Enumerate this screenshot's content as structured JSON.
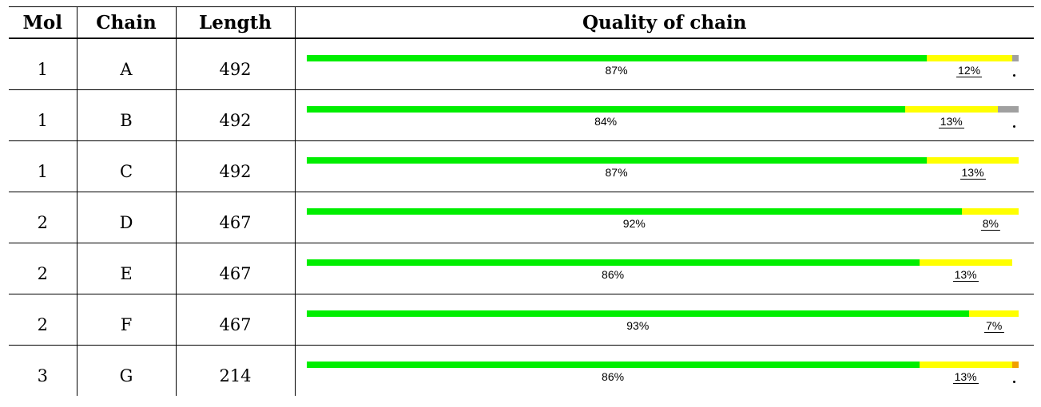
{
  "headers": {
    "mol": "Mol",
    "chain": "Chain",
    "length": "Length",
    "quality": "Quality of chain"
  },
  "colors": {
    "good": "#00ee00",
    "medium": "#ffff00",
    "bad": "#f0a000",
    "missing": "#a0a0a0"
  },
  "rows": [
    {
      "mol": "1",
      "chain": "A",
      "length": "492",
      "green": 0.87,
      "yellow": 0.12,
      "orange": 0.0,
      "gray": 0.01,
      "green_label": "87%",
      "yellow_label": "12%",
      "dot": true,
      "bar_span": 1.0
    },
    {
      "mol": "1",
      "chain": "B",
      "length": "492",
      "green": 0.84,
      "yellow": 0.13,
      "orange": 0.0,
      "gray": 0.03,
      "green_label": "84%",
      "yellow_label": "13%",
      "dot": true,
      "bar_span": 1.0
    },
    {
      "mol": "1",
      "chain": "C",
      "length": "492",
      "green": 0.87,
      "yellow": 0.13,
      "orange": 0.0,
      "gray": 0.0,
      "green_label": "87%",
      "yellow_label": "13%",
      "dot": false,
      "bar_span": 1.0
    },
    {
      "mol": "2",
      "chain": "D",
      "length": "467",
      "green": 0.92,
      "yellow": 0.08,
      "orange": 0.0,
      "gray": 0.0,
      "green_label": "92%",
      "yellow_label": "8%",
      "dot": false,
      "bar_span": 1.0
    },
    {
      "mol": "2",
      "chain": "E",
      "length": "467",
      "green": 0.86,
      "yellow": 0.13,
      "orange": 0.0,
      "gray": 0.0,
      "green_label": "86%",
      "yellow_label": "13%",
      "dot": false,
      "bar_span": 0.99
    },
    {
      "mol": "2",
      "chain": "F",
      "length": "467",
      "green": 0.93,
      "yellow": 0.07,
      "orange": 0.0,
      "gray": 0.0,
      "green_label": "93%",
      "yellow_label": "7%",
      "dot": false,
      "bar_span": 1.0
    },
    {
      "mol": "3",
      "chain": "G",
      "length": "214",
      "green": 0.86,
      "yellow": 0.13,
      "orange": 0.01,
      "gray": 0.0,
      "green_label": "86%",
      "yellow_label": "13%",
      "dot": true,
      "bar_span": 1.0
    }
  ]
}
